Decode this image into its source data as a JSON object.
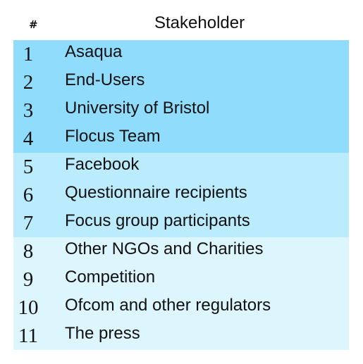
{
  "header": {
    "num_label": "#",
    "name_label": "Stakeholder"
  },
  "colors": {
    "group1": "#8fdcfd",
    "group2": "#bbecfd",
    "group3": "#ddf6fe"
  },
  "rows": [
    {
      "num": "1",
      "name": "Asaqua",
      "group": 1
    },
    {
      "num": "2",
      "name": "End-Users",
      "group": 1
    },
    {
      "num": "3",
      "name": "University of Bristol",
      "group": 1
    },
    {
      "num": "4",
      "name": "Flocus Team",
      "group": 1
    },
    {
      "num": "5",
      "name": "Facebook",
      "group": 2
    },
    {
      "num": "6",
      "name": "Questionnaire recipients",
      "group": 2
    },
    {
      "num": "7",
      "name": "Focus group participants",
      "group": 2
    },
    {
      "num": "8",
      "name": "Other NGOs and Charities",
      "group": 3
    },
    {
      "num": "9",
      "name": "Competition",
      "group": 3
    },
    {
      "num": "10",
      "name": "Ofcom and other regulators",
      "group": 3
    },
    {
      "num": "11",
      "name": "The press",
      "group": 3
    }
  ]
}
